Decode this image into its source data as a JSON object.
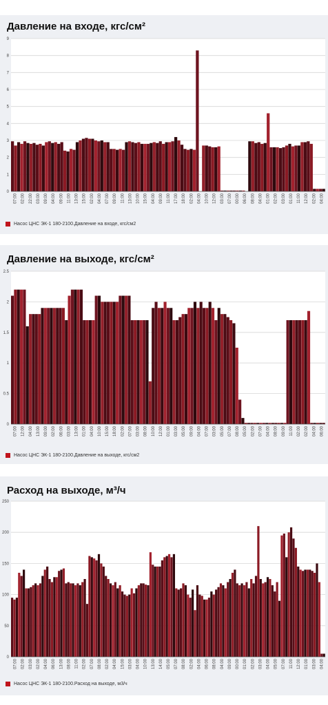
{
  "chart_data": [
    {
      "type": "bar",
      "title": "Давление на входе, кгс/см²",
      "ylim": [
        0,
        9
      ],
      "yticks": [
        "0",
        "1",
        "2",
        "3",
        "4",
        "5",
        "6",
        "7",
        "8",
        "9"
      ],
      "xticks": [
        "07:00",
        "02:00",
        "22:00",
        "03:00",
        "09:00",
        "04:00",
        "09:00",
        "11:00",
        "13:00",
        "15:00",
        "02:00",
        "04:00",
        "07:00",
        "09:00",
        "11:00",
        "13:00",
        "10:00",
        "15:00",
        "04:00",
        "09:00",
        "11:00",
        "17:00",
        "18:00",
        "02:00",
        "04:00",
        "10:00",
        "12:00",
        "03:00",
        "07:00",
        "00:00",
        "06:00",
        "08:00",
        "04:00",
        "01:00",
        "02:00",
        "03:00",
        "01:00",
        "11:00",
        "12:00",
        "02:00",
        "04:00"
      ],
      "values": [
        2.95,
        2.7,
        2.9,
        2.8,
        2.95,
        2.85,
        2.8,
        2.85,
        2.75,
        2.8,
        2.7,
        2.9,
        2.95,
        2.85,
        2.9,
        2.8,
        2.9,
        2.4,
        2.35,
        2.5,
        2.45,
        2.9,
        3.0,
        3.1,
        3.15,
        3.1,
        3.1,
        3.0,
        2.95,
        3.0,
        2.9,
        2.9,
        2.5,
        2.5,
        2.45,
        2.5,
        2.45,
        2.9,
        2.95,
        2.9,
        2.85,
        2.9,
        2.8,
        2.8,
        2.8,
        2.85,
        2.9,
        2.85,
        2.95,
        2.8,
        2.9,
        2.9,
        2.95,
        3.2,
        3.0,
        2.75,
        2.5,
        2.45,
        2.5,
        2.45,
        8.3,
        null,
        2.7,
        2.7,
        2.65,
        2.6,
        2.6,
        2.65,
        0.05,
        0.05,
        0.05,
        0.05,
        0.05,
        0.05,
        0.05,
        0.05,
        null,
        2.95,
        2.95,
        2.85,
        2.9,
        2.8,
        2.85,
        4.6,
        2.6,
        2.6,
        2.6,
        2.55,
        2.6,
        2.7,
        2.8,
        2.65,
        2.7,
        2.7,
        2.9,
        2.9,
        2.95,
        2.8,
        0.15,
        0.15,
        0.15,
        0.15
      ],
      "legend": "Насос ЦНС ЭК-1 180-2100.Давление на входе, кгс/см2",
      "color": "#8b1620"
    },
    {
      "type": "bar",
      "title": "Давление на выходе, кгс/см²",
      "ylim": [
        0,
        2.5
      ],
      "yticks": [
        "0",
        "0.5",
        "1",
        "1.5",
        "2",
        "2.5"
      ],
      "xticks": [
        "07:00",
        "12:00",
        "04:00",
        "13:00",
        "09:00",
        "02:00",
        "06:00",
        "03:00",
        "13:00",
        "01:00",
        "04:00",
        "10:00",
        "15:00",
        "18:00",
        "02:00",
        "07:00",
        "03:00",
        "08:00",
        "10:00",
        "12:00",
        "01:00",
        "03:00",
        "05:00",
        "09:00",
        "04:00",
        "07:00",
        "03:00",
        "05:00",
        "07:00",
        "08:00",
        "05:00",
        "02:00",
        "07:00",
        "04:00",
        "08:00",
        "09:00",
        "11:00",
        "02:00",
        "02:00",
        "04:00",
        "06:00"
      ],
      "values": [
        2.1,
        2.2,
        2.2,
        2.2,
        2.2,
        1.6,
        1.8,
        1.8,
        1.8,
        1.8,
        1.9,
        1.9,
        1.9,
        1.9,
        1.9,
        1.9,
        1.9,
        1.9,
        1.7,
        2.1,
        2.2,
        2.2,
        2.2,
        2.2,
        1.7,
        1.7,
        1.7,
        1.7,
        2.1,
        2.1,
        2.0,
        2.0,
        2.0,
        2.0,
        2.0,
        2.0,
        2.1,
        2.1,
        2.1,
        2.1,
        1.7,
        1.7,
        1.7,
        1.7,
        1.7,
        1.7,
        0.7,
        1.9,
        2.0,
        1.9,
        1.9,
        2.0,
        1.9,
        1.9,
        1.7,
        1.7,
        1.75,
        1.8,
        1.8,
        1.9,
        1.9,
        2.0,
        1.9,
        2.0,
        1.9,
        1.9,
        2.0,
        1.9,
        1.7,
        1.9,
        1.8,
        1.8,
        1.75,
        1.7,
        1.65,
        1.25,
        0.4,
        0.1,
        0.02,
        0.02,
        0.02,
        0.02,
        0.02,
        0.02,
        0.02,
        0.02,
        0.02,
        0.02,
        0.02,
        0.02,
        0.02,
        0.02,
        1.7,
        1.7,
        1.7,
        1.7,
        1.7,
        1.7,
        1.7,
        1.85,
        0.02,
        0.02,
        0.02,
        0.02,
        0.02
      ],
      "legend": "Насос ЦНС ЭК-1 180-2100.Давление на выходе, кгс/см2",
      "color": "#7a1420"
    },
    {
      "type": "bar",
      "title": "Расход на выходе, м³/ч",
      "ylim": [
        0,
        250
      ],
      "yticks": [
        "0",
        "50",
        "100",
        "150",
        "200",
        "250"
      ],
      "xticks": [
        "07:00",
        "02:00",
        "03:00",
        "02:00",
        "04:00",
        "06:00",
        "13:00",
        "08:00",
        "11:00",
        "02:00",
        "07:00",
        "08:00",
        "02:00",
        "04:00",
        "15:00",
        "03:00",
        "04:00",
        "10:00",
        "13:00",
        "14:00",
        "05:00",
        "07:00",
        "08:00",
        "02:00",
        "04:00",
        "06:00",
        "08:00",
        "04:00",
        "09:00",
        "00:00",
        "01:00",
        "02:00",
        "03:00",
        "04:00",
        "05:00",
        "07:00",
        "11:00",
        "12:00",
        "01:00",
        "03:00",
        "04:00"
      ],
      "values": [
        95,
        92,
        95,
        135,
        130,
        140,
        110,
        110,
        112,
        115,
        118,
        115,
        118,
        130,
        140,
        145,
        125,
        120,
        128,
        128,
        138,
        140,
        142,
        118,
        120,
        118,
        118,
        115,
        118,
        115,
        120,
        125,
        85,
        162,
        160,
        158,
        155,
        165,
        150,
        145,
        130,
        125,
        118,
        115,
        120,
        110,
        115,
        105,
        100,
        98,
        100,
        110,
        102,
        110,
        115,
        118,
        118,
        116,
        115,
        168,
        148,
        145,
        145,
        145,
        155,
        160,
        162,
        165,
        160,
        165,
        110,
        108,
        110,
        118,
        115,
        100,
        95,
        108,
        75,
        115,
        100,
        98,
        92,
        92,
        95,
        105,
        100,
        108,
        112,
        118,
        115,
        110,
        120,
        125,
        135,
        140,
        118,
        115,
        118,
        115,
        120,
        110,
        125,
        118,
        130,
        210,
        125,
        118,
        120,
        128,
        125,
        115,
        105,
        120,
        90,
        195,
        198,
        160,
        200,
        208,
        190,
        175,
        145,
        140,
        138,
        140,
        140,
        140,
        138,
        135,
        150,
        120,
        5,
        5
      ],
      "legend": "Насос ЦНС ЭК-1 180-2100.Расход на выходе, м3/ч",
      "color": "#7c1824"
    }
  ]
}
